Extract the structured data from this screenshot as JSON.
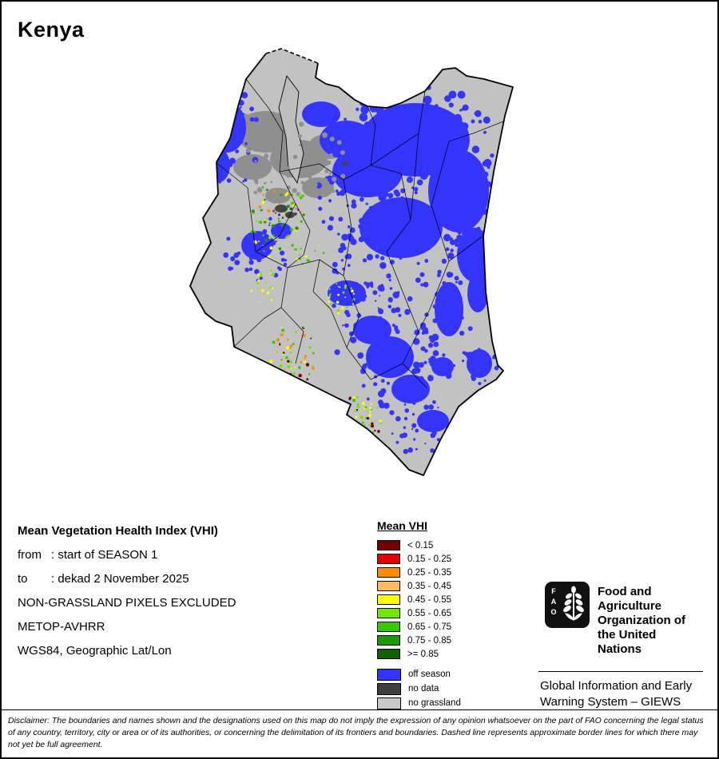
{
  "page": {
    "title": "Kenya"
  },
  "info": {
    "title": "Mean Vegetation Health Index (VHI)",
    "lines": [
      {
        "label": "from",
        "value": ": start of SEASON 1"
      },
      {
        "label": "to",
        "value": ": dekad 2 November 2025"
      },
      {
        "label": "",
        "value": "NON-GRASSLAND PIXELS EXCLUDED"
      },
      {
        "label": "",
        "value": "METOP-AVHRR"
      },
      {
        "label": "",
        "value": "WGS84, Geographic Lat/Lon"
      }
    ]
  },
  "legend": {
    "title": "Mean VHI",
    "classes": [
      {
        "label": "< 0.15",
        "color": "#720000"
      },
      {
        "label": "0.15 - 0.25",
        "color": "#e60000"
      },
      {
        "label": "0.25 - 0.35",
        "color": "#ff8c00"
      },
      {
        "label": "0.35 - 0.45",
        "color": "#ffb95e"
      },
      {
        "label": "0.45 - 0.55",
        "color": "#ffff00"
      },
      {
        "label": "0.55 - 0.65",
        "color": "#70e800"
      },
      {
        "label": "0.65 - 0.75",
        "color": "#38c800"
      },
      {
        "label": "0.75 - 0.85",
        "color": "#1d9a00"
      },
      {
        "label": ">= 0.85",
        "color": "#0d6300"
      }
    ],
    "extras": [
      {
        "label": "off season",
        "color": "#3434ff"
      },
      {
        "label": "no data",
        "color": "#3f3f3f"
      },
      {
        "label": "no grassland",
        "color": "#c9c9c9"
      }
    ]
  },
  "map": {
    "region": "Kenya",
    "colors": {
      "no_grassland": "#c2c2c2",
      "off_season": "#3434ff",
      "no_data": "#454545",
      "terrain_gray": "#8f8f8f"
    }
  },
  "branding": {
    "fao_logo_text": "FAO",
    "fao_name": "Food and Agriculture Organization of the United Nations",
    "giews_name": "Global Information and Early Warning System – GIEWS"
  },
  "disclaimer": "Disclaimer: The boundaries and names shown and the designations used on this map do not imply the expression of any opinion whatsoever on the part of FAO concerning the legal status of any country, territory, city or area or of its authorities, or concerning the delimitation of its frontiers and boundaries. Dashed line represents approximate border lines for which there may not yet be full agreement."
}
